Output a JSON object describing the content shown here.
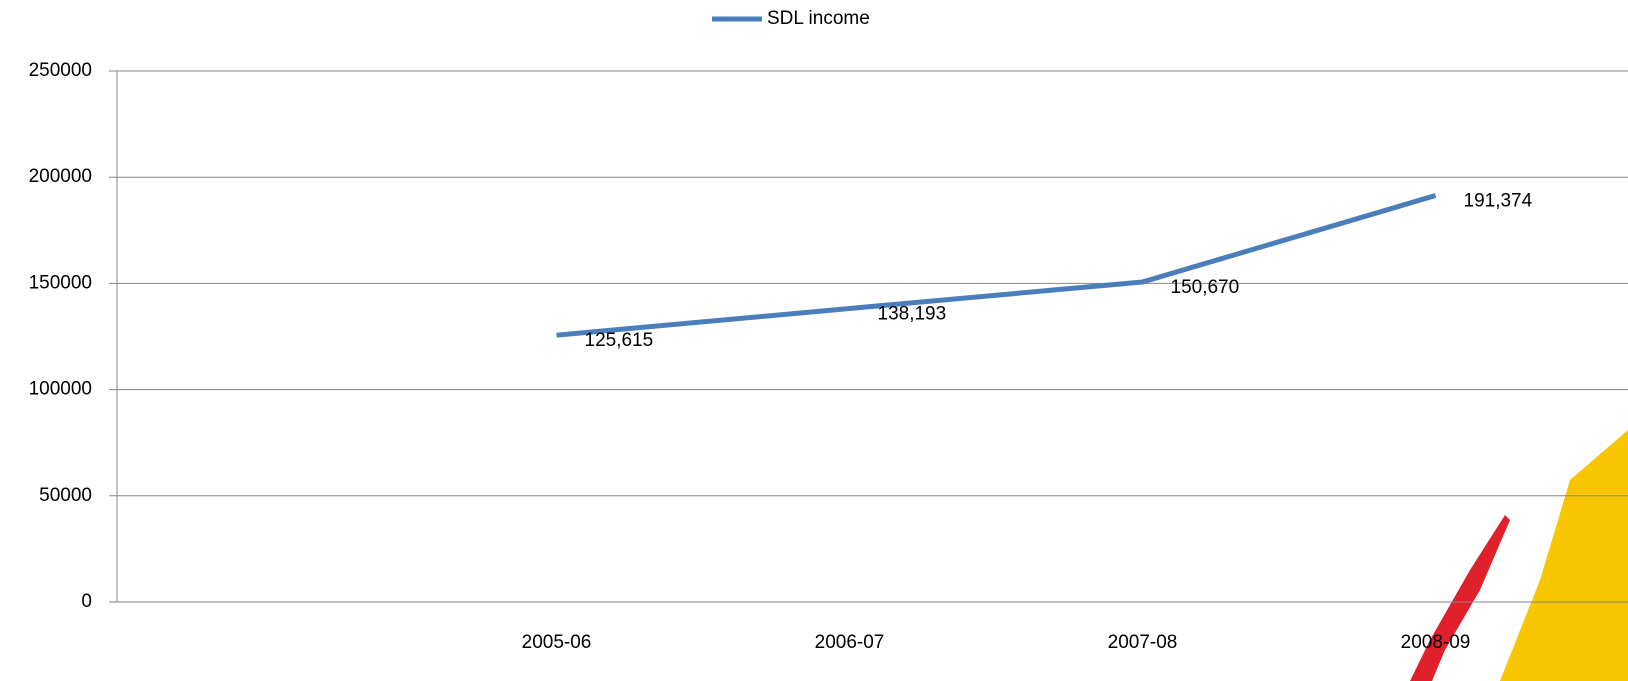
{
  "chart_data": {
    "type": "line",
    "categories": [
      null,
      "2005-06",
      "2006-07",
      "2007-08",
      "2008-09"
    ],
    "series": [
      {
        "name": "SDL income",
        "color": "#4a7ebb",
        "values": [
          null,
          125615,
          138193,
          150670,
          191374
        ],
        "value_labels": [
          null,
          "125,615",
          "138,193",
          "150,670",
          "191,374"
        ]
      }
    ],
    "ylim": [
      0,
      250000
    ],
    "yticks": [
      0,
      50000,
      100000,
      150000,
      200000,
      250000
    ],
    "grid": true,
    "legend": "top"
  }
}
